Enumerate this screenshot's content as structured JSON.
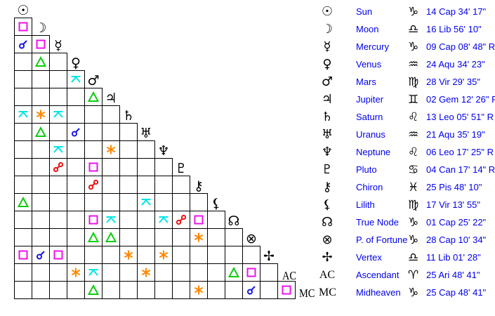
{
  "colors": {
    "conjunction": "#1515e0",
    "opposition": "#ee1111",
    "square": "#ee11ee",
    "trine": "#11cc11",
    "sextile": "#ff8800",
    "quincunx": "#00e5e5",
    "link": "#0000ee"
  },
  "planets": [
    {
      "name": "Sun",
      "glyph": "☉",
      "sign": "♑",
      "position": "14 Cap 34' 17\""
    },
    {
      "name": "Moon",
      "glyph": "☽",
      "sign": "♎",
      "position": "16 Lib 56' 10\""
    },
    {
      "name": "Mercury",
      "glyph": "☿",
      "sign": "♑",
      "position": "09 Cap 08' 48\" R"
    },
    {
      "name": "Venus",
      "glyph": "♀",
      "sign": "♒",
      "position": "24 Aqu 34' 23\""
    },
    {
      "name": "Mars",
      "glyph": "♂",
      "sign": "♍",
      "position": "28 Vir 29' 35\""
    },
    {
      "name": "Jupiter",
      "glyph": "♃",
      "sign": "♊",
      "position": "02 Gem 12' 26\" R"
    },
    {
      "name": "Saturn",
      "glyph": "♄",
      "sign": "♌",
      "position": "13 Leo 05' 51\" R"
    },
    {
      "name": "Uranus",
      "glyph": "♅",
      "sign": "♒",
      "position": "21 Aqu 35' 19\""
    },
    {
      "name": "Neptune",
      "glyph": "♆",
      "sign": "♌",
      "position": "06 Leo 17' 25\" R"
    },
    {
      "name": "Pluto",
      "glyph": "♇",
      "sign": "♋",
      "position": "04 Can 17' 14\" R"
    },
    {
      "name": "Chiron",
      "glyph": "⚷",
      "sign": "♓",
      "position": "25 Pis 48' 10\""
    },
    {
      "name": "Lilith",
      "glyph": "⚸",
      "sign": "♍",
      "position": "17 Vir 13' 55\""
    },
    {
      "name": "True Node",
      "glyph": "☊",
      "sign": "♑",
      "position": "01 Cap 25' 22\""
    },
    {
      "name": "P. of Fortune",
      "glyph": "⊗",
      "sign": "♑",
      "position": "28 Cap 10' 34\""
    },
    {
      "name": "Vertex",
      "glyph": "✢",
      "sign": "♎",
      "position": "11 Lib 01' 28\""
    },
    {
      "name": "Ascendant",
      "glyph": "AC",
      "sign": "♈",
      "position": "25 Ari 48' 41\""
    },
    {
      "name": "Midheaven",
      "glyph": "MC",
      "sign": "♑",
      "position": "25 Cap 48' 41\""
    }
  ],
  "aspects": [
    {
      "a": "Moon",
      "b": "Sun",
      "type": "square"
    },
    {
      "a": "Mercury",
      "b": "Sun",
      "type": "conjunction"
    },
    {
      "a": "Mercury",
      "b": "Moon",
      "type": "square"
    },
    {
      "a": "Venus",
      "b": "Moon",
      "type": "trine"
    },
    {
      "a": "Mars",
      "b": "Venus",
      "type": "quincunx"
    },
    {
      "a": "Jupiter",
      "b": "Mars",
      "type": "trine"
    },
    {
      "a": "Saturn",
      "b": "Sun",
      "type": "quincunx"
    },
    {
      "a": "Saturn",
      "b": "Moon",
      "type": "sextile"
    },
    {
      "a": "Saturn",
      "b": "Mercury",
      "type": "quincunx"
    },
    {
      "a": "Uranus",
      "b": "Moon",
      "type": "trine"
    },
    {
      "a": "Uranus",
      "b": "Venus",
      "type": "conjunction"
    },
    {
      "a": "Neptune",
      "b": "Mercury",
      "type": "quincunx"
    },
    {
      "a": "Neptune",
      "b": "Jupiter",
      "type": "sextile"
    },
    {
      "a": "Pluto",
      "b": "Mercury",
      "type": "opposition"
    },
    {
      "a": "Pluto",
      "b": "Mars",
      "type": "square"
    },
    {
      "a": "Chiron",
      "b": "Mars",
      "type": "opposition"
    },
    {
      "a": "Lilith",
      "b": "Sun",
      "type": "trine"
    },
    {
      "a": "Lilith",
      "b": "Uranus",
      "type": "quincunx"
    },
    {
      "a": "True Node",
      "b": "Mars",
      "type": "square"
    },
    {
      "a": "True Node",
      "b": "Jupiter",
      "type": "quincunx"
    },
    {
      "a": "True Node",
      "b": "Neptune",
      "type": "quincunx"
    },
    {
      "a": "True Node",
      "b": "Pluto",
      "type": "opposition"
    },
    {
      "a": "True Node",
      "b": "Chiron",
      "type": "square"
    },
    {
      "a": "P. of Fortune",
      "b": "Mars",
      "type": "trine"
    },
    {
      "a": "P. of Fortune",
      "b": "Jupiter",
      "type": "trine"
    },
    {
      "a": "P. of Fortune",
      "b": "Chiron",
      "type": "sextile"
    },
    {
      "a": "Vertex",
      "b": "Sun",
      "type": "square"
    },
    {
      "a": "Vertex",
      "b": "Moon",
      "type": "conjunction"
    },
    {
      "a": "Vertex",
      "b": "Mercury",
      "type": "square"
    },
    {
      "a": "Vertex",
      "b": "Saturn",
      "type": "sextile"
    },
    {
      "a": "Vertex",
      "b": "Neptune",
      "type": "sextile"
    },
    {
      "a": "Ascendant",
      "b": "Venus",
      "type": "sextile"
    },
    {
      "a": "Ascendant",
      "b": "Mars",
      "type": "quincunx"
    },
    {
      "a": "Ascendant",
      "b": "Uranus",
      "type": "sextile"
    },
    {
      "a": "Ascendant",
      "b": "True Node",
      "type": "trine"
    },
    {
      "a": "Ascendant",
      "b": "P. of Fortune",
      "type": "square"
    },
    {
      "a": "Midheaven",
      "b": "Mars",
      "type": "trine"
    },
    {
      "a": "Midheaven",
      "b": "Chiron",
      "type": "sextile"
    },
    {
      "a": "Midheaven",
      "b": "P. of Fortune",
      "type": "conjunction"
    },
    {
      "a": "Midheaven",
      "b": "Ascendant",
      "type": "square"
    }
  ]
}
